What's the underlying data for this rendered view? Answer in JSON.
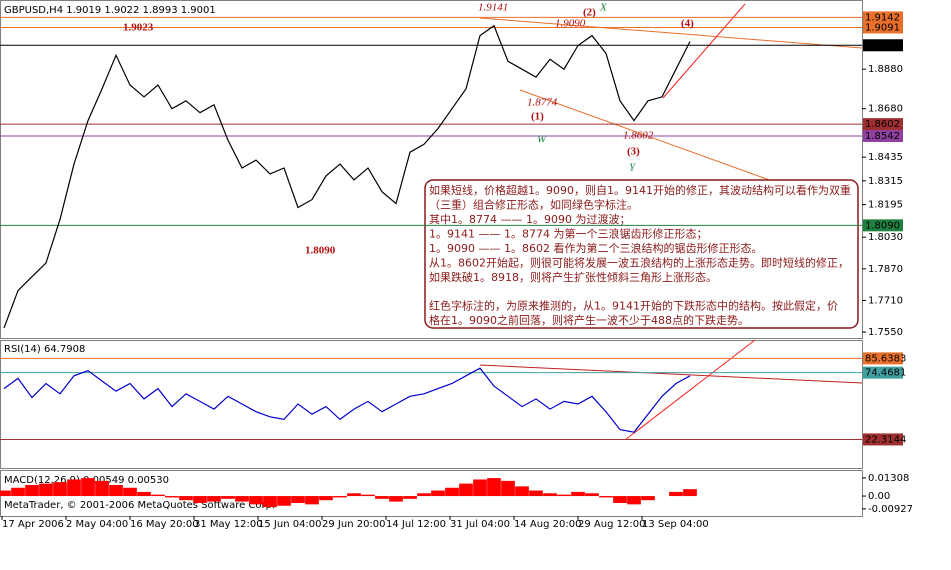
{
  "chart_data": [
    {
      "type": "line",
      "title": "GBPUSD,H4  1.9019 1.9022 1.8993 1.9001",
      "color": "#000000",
      "values": [
        1.757,
        1.776,
        1.783,
        1.79,
        1.812,
        1.84,
        1.862,
        1.878,
        1.895,
        1.88,
        1.874,
        1.88,
        1.868,
        1.872,
        1.866,
        1.87,
        1.852,
        1.838,
        1.842,
        1.835,
        1.838,
        1.818,
        1.822,
        1.834,
        1.84,
        1.832,
        1.838,
        1.826,
        1.82,
        1.846,
        1.85,
        1.858,
        1.868,
        1.878,
        1.905,
        1.91,
        1.892,
        1.888,
        1.884,
        1.893,
        1.888,
        1.9,
        1.905,
        1.896,
        1.872,
        1.862,
        1.872,
        1.874,
        1.888,
        1.902
      ],
      "ylim": [
        1.752,
        1.923
      ],
      "yticks": [
        {
          "value": 1.888,
          "label": "1.8880"
        },
        {
          "value": 1.868,
          "label": "1.8680"
        },
        {
          "value": 1.8435,
          "label": "1.8435"
        },
        {
          "value": 1.8315,
          "label": "1.8315"
        },
        1.8195,
        {
          "value": 1.803,
          "label": "1.8030"
        },
        {
          "value": 1.787,
          "label": "1.7870"
        },
        {
          "value": 1.771,
          "label": "1.7710"
        },
        {
          "value": 1.755,
          "label": "1.7550"
        }
      ],
      "levels": [
        {
          "value": 1.9142,
          "label": "1.9142",
          "color": "#e8702a"
        },
        {
          "value": 1.9091,
          "label": "1.9091",
          "color": "#e8702a"
        },
        {
          "value": 1.9001,
          "label": "1.9001",
          "color": "#000000"
        },
        {
          "value": 1.8602,
          "label": "1.8602",
          "color": "#a03030"
        },
        {
          "value": 1.8542,
          "label": "1.8542",
          "color": "#9040a0"
        },
        {
          "value": 1.809,
          "label": "1.8090",
          "color": "#208040"
        }
      ],
      "annotations": [
        "1.9023",
        "1.8090",
        "1.9141",
        "1.9090",
        "(2)",
        "X",
        "(4)",
        "1.8774",
        "(1)",
        "W",
        "1.8602",
        "(3)",
        "Y"
      ],
      "xtick_labels": [
        "17 Apr 2006",
        "2 May 04:00",
        "16 May 20:00",
        "31 May 12:00",
        "15 Jun 04:00",
        "29 Jun 20:00",
        "14 Jul 12:00",
        "31 Jul 04:00",
        "14 Aug 20:00",
        "29 Aug 12:00",
        "13 Sep 04:00"
      ],
      "note": [
        "如果短线，价格超越1。9090，则自1。9141开始的修正，其波动结构可以看作为双重",
        "（三重）组合修正形态，如同绿色字标注。",
        "其中1。8774 —— 1。9090 为过渡波；",
        "1。9141 —— 1。8774 为第一个三浪锯齿形修正形态；",
        "1。9090 —— 1。8602 看作为第二个三浪结构的锯齿形修正形态。",
        "从1。8602开始起，则很可能将发展一波五浪结构的上涨形态走势。即时短线的修正，",
        "如果跌破1。8918，则将产生扩张性倾斜三角形上涨形态。",
        "红色字标注的，为原来推测的，从1。9141开始的下跌形态中的结构。按此假定，价",
        "格在1。9090之前回落，则将产生一波不少于488点的下跌走势。"
      ]
    },
    {
      "type": "line",
      "title": "RSI(14) 64.7908",
      "color": "#0000cc",
      "values": [
        62,
        70,
        55,
        66,
        58,
        72,
        76,
        68,
        60,
        66,
        54,
        62,
        48,
        58,
        52,
        46,
        56,
        50,
        44,
        40,
        38,
        50,
        42,
        48,
        38,
        46,
        52,
        44,
        50,
        56,
        58,
        62,
        66,
        72,
        78,
        64,
        56,
        48,
        54,
        46,
        52,
        50,
        56,
        44,
        30,
        28,
        42,
        56,
        66,
        72
      ],
      "ylim": [
        0,
        100
      ],
      "levels": [
        {
          "value": 85.6383,
          "label": "85.6383",
          "color": "#e8702a"
        },
        {
          "value": 74.4681,
          "label": "74.4681",
          "color": "#40a0a0"
        },
        {
          "value": 22.3144,
          "label": "22.3144",
          "color": "#a03030"
        }
      ]
    },
    {
      "type": "bar",
      "title": "MACD(12,26,9) 0.00549 0.00530",
      "color": "#ff0000",
      "values": [
        0.004,
        0.006,
        0.008,
        0.009,
        0.01,
        0.012,
        0.013,
        0.011,
        0.008,
        0.006,
        0.003,
        0.001,
        -0.001,
        -0.003,
        -0.005,
        -0.004,
        -0.002,
        -0.004,
        -0.006,
        -0.008,
        -0.007,
        -0.005,
        -0.006,
        -0.003,
        -0.001,
        0.002,
        0.001,
        -0.002,
        -0.004,
        -0.002,
        0.002,
        0.004,
        0.006,
        0.009,
        0.012,
        0.013,
        0.011,
        0.007,
        0.004,
        0.002,
        0.001,
        0.003,
        0.002,
        -0.001,
        -0.005,
        -0.006,
        -0.003,
        0.0,
        0.003,
        0.005
      ],
      "ylim": [
        -0.0137,
        0.0174
      ],
      "yticks": [
        0.01308,
        {
          "value": 0,
          "label": "0.00"
        },
        -0.00927
      ]
    }
  ],
  "footer": "MetaTrader, © 2001-2006 MetaQuotes Software Corp."
}
